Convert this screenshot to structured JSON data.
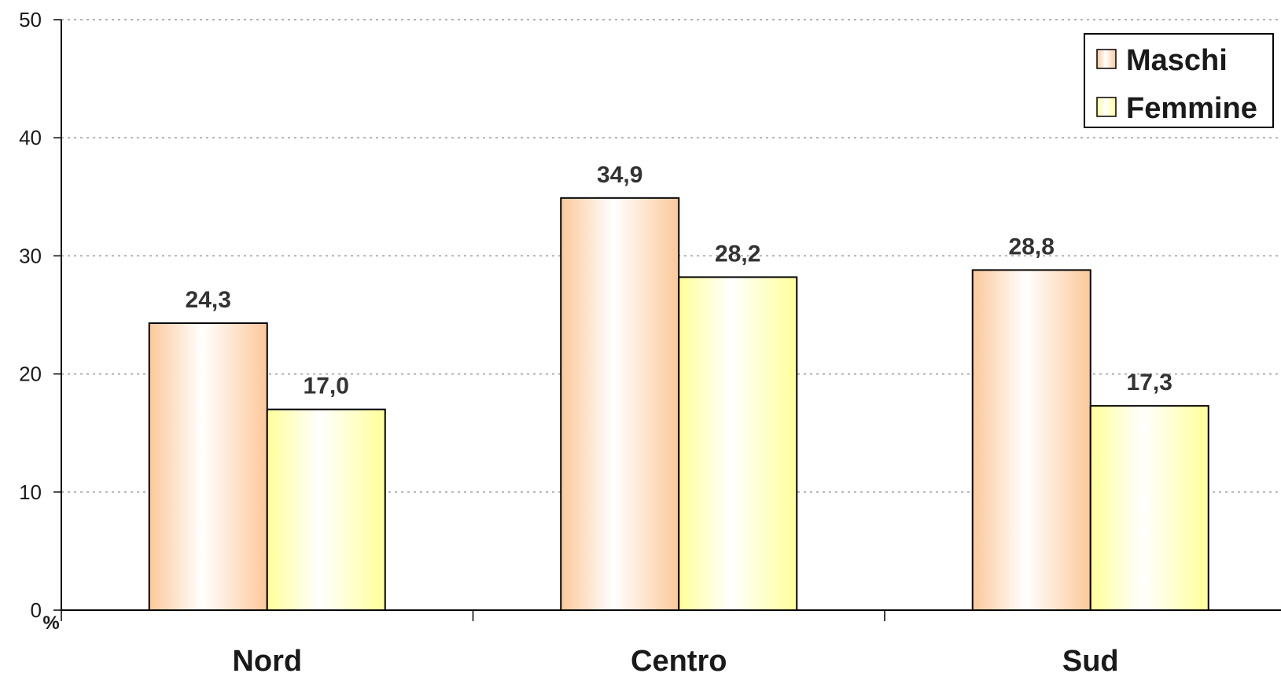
{
  "chart_data": {
    "type": "bar",
    "categories": [
      "Nord",
      "Centro",
      "Sud"
    ],
    "series": [
      {
        "name": "Maschi",
        "values": [
          24.3,
          34.9,
          28.8
        ],
        "labels": [
          "24,3",
          "34,9",
          "28,8"
        ],
        "color_edge": "#fcc89a",
        "color_center": "#ffffff"
      },
      {
        "name": "Femmine",
        "values": [
          17.0,
          28.2,
          17.3
        ],
        "labels": [
          "17,0",
          "28,2",
          "17,3"
        ],
        "color_edge": "#ffff99",
        "color_center": "#ffffff"
      }
    ],
    "y_ticks": [
      "0",
      "10",
      "20",
      "30",
      "40",
      "50"
    ],
    "ylim": [
      0,
      50
    ],
    "y_unit": "%",
    "grid": true,
    "legend": "top-right"
  }
}
